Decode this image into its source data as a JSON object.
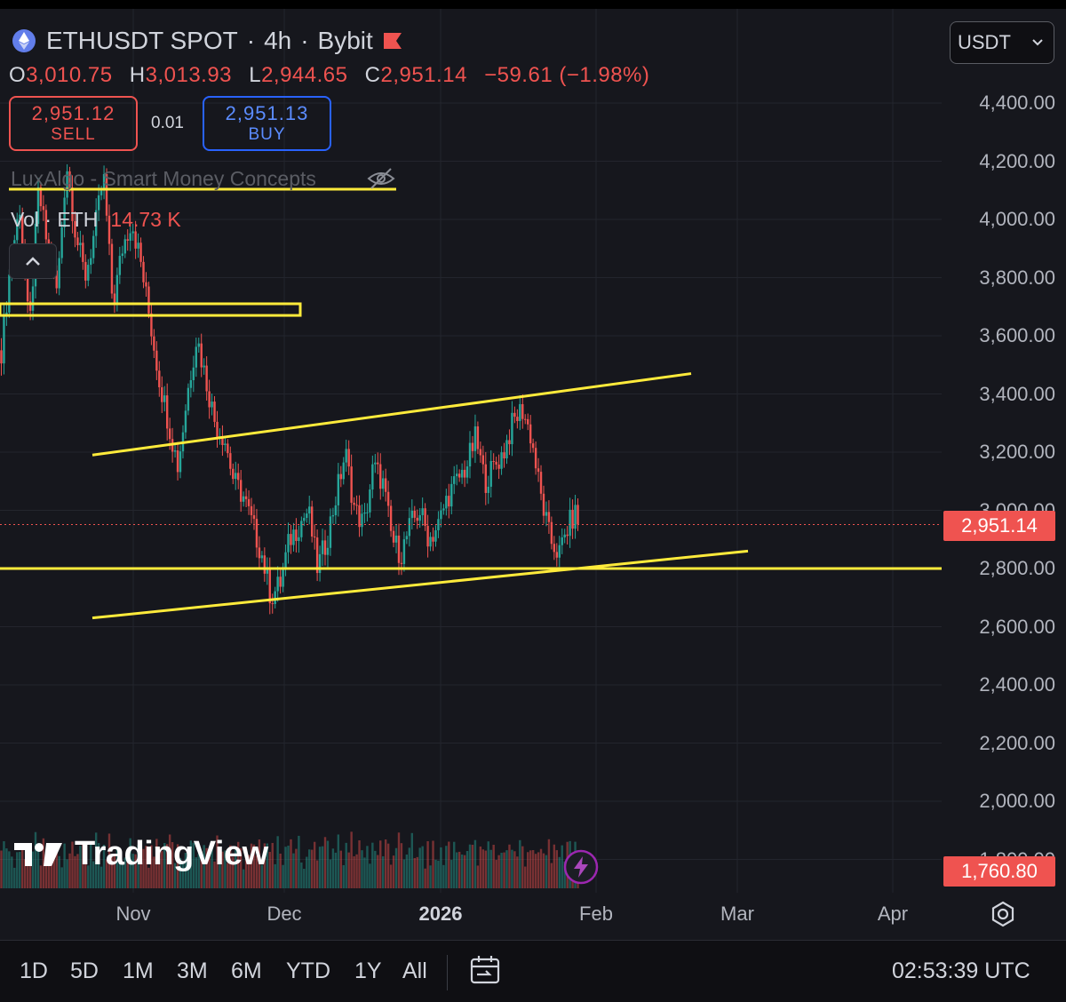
{
  "header": {
    "symbol": "ETHUSDT SPOT",
    "interval": "4h",
    "exchange": "Bybit",
    "separator": "·"
  },
  "ohlc": {
    "open_label": "O",
    "open": "3,010.75",
    "high_label": "H",
    "high": "3,013.93",
    "low_label": "L",
    "low": "2,944.65",
    "close_label": "C",
    "close": "2,951.14",
    "change": "−59.61 (−1.98%)"
  },
  "trade": {
    "sell_price": "2,951.12",
    "sell_label": "SELL",
    "spread": "0.01",
    "buy_price": "2,951.13",
    "buy_label": "BUY"
  },
  "indicators": {
    "smc_name": "LuxAlgo - Smart Money Concepts",
    "vol_label": "Vol · ETH",
    "vol_value": "14.73 K"
  },
  "currency_select": {
    "value": "USDT"
  },
  "price_axis": {
    "ticks": [
      "4,400.00",
      "4,200.00",
      "4,000.00",
      "3,800.00",
      "3,600.00",
      "3,400.00",
      "3,200.00",
      "3,000.00",
      "2,800.00",
      "2,600.00",
      "2,400.00",
      "2,200.00",
      "2,000.00",
      "1,800.00"
    ],
    "last_price": "2,951.14",
    "low_marker": "1,760.80"
  },
  "time_axis": {
    "ticks": [
      {
        "label": "Nov"
      },
      {
        "label": "Dec"
      },
      {
        "label": "2026",
        "bold": true
      },
      {
        "label": "Feb"
      },
      {
        "label": "Mar"
      },
      {
        "label": "Apr"
      }
    ]
  },
  "branding": {
    "logo_text": "TradingView"
  },
  "ranges": [
    "1D",
    "5D",
    "1M",
    "3M",
    "6M",
    "YTD",
    "1Y",
    "All"
  ],
  "clock": "02:53:39 UTC",
  "colors": {
    "background": "#16171d",
    "bullish": "#26a69a",
    "bearish": "#ef5350",
    "drawing": "#ffeb3b",
    "buy": "#2962ff"
  },
  "chart_data": {
    "type": "candlestick",
    "symbol": "ETHUSDT",
    "interval": "4h",
    "y_range": [
      1700,
      4550
    ],
    "last_close": 2951.14,
    "horizontal_levels": [
      3690,
      2800
    ],
    "channel": {
      "upper": {
        "from": 3190,
        "to": 3470
      },
      "lower": {
        "from": 2630,
        "to": 2860
      }
    },
    "price_path": [
      3550,
      3850,
      4050,
      3600,
      4100,
      3900,
      3750,
      4200,
      3950,
      3800,
      3950,
      4150,
      3700,
      3900,
      4000,
      3850,
      3650,
      3450,
      3300,
      3150,
      3400,
      3600,
      3450,
      3300,
      3250,
      3100,
      3050,
      2950,
      2850,
      2700,
      2750,
      2900,
      2950,
      3000,
      2800,
      2900,
      3050,
      3200,
      3000,
      2950,
      3150,
      3100,
      2900,
      2850,
      2950,
      3000,
      2900,
      2950,
      3050,
      3100,
      3150,
      3250,
      3100,
      3150,
      3200,
      3300,
      3350,
      3250,
      3050,
      2900,
      2850,
      2950,
      3000
    ],
    "path_span": [
      "Oct",
      "late Jan"
    ]
  }
}
